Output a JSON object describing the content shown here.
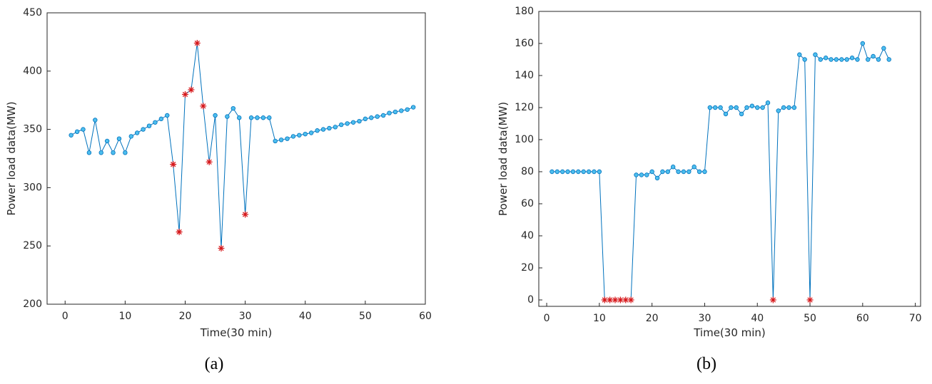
{
  "chart_data": [
    {
      "type": "line",
      "caption": "(a)",
      "xlabel": "Time(30 min)",
      "ylabel": "Power load data(MW)",
      "line_color": "#0072BD",
      "x": [
        1,
        2,
        3,
        4,
        5,
        6,
        7,
        8,
        9,
        10,
        11,
        12,
        13,
        14,
        15,
        16,
        17,
        18,
        19,
        20,
        21,
        22,
        23,
        24,
        25,
        26,
        27,
        28,
        29,
        30,
        31,
        32,
        33,
        34,
        35,
        36,
        37,
        38,
        39,
        40,
        41,
        42,
        43,
        44,
        45,
        46,
        47,
        48,
        49,
        50,
        51,
        52,
        53,
        54,
        55,
        56,
        57,
        58
      ],
      "series": [
        {
          "marker": "o",
          "color": "#4DBEEE",
          "values": [
            345,
            348,
            350,
            330,
            358,
            330,
            340,
            330,
            342,
            330,
            344,
            347,
            350,
            353,
            356,
            359,
            362,
            null,
            null,
            null,
            null,
            null,
            null,
            null,
            362,
            null,
            361,
            368,
            360,
            null,
            360,
            360,
            360,
            360,
            340,
            341,
            342,
            344,
            345,
            346,
            347,
            349,
            350,
            351,
            352,
            354,
            355,
            356,
            357,
            359,
            360,
            361,
            362,
            364,
            365,
            366,
            367,
            369
          ]
        },
        {
          "marker": "*",
          "color": "#D7191C",
          "values": [
            null,
            null,
            null,
            null,
            null,
            null,
            null,
            null,
            null,
            null,
            null,
            null,
            null,
            null,
            null,
            null,
            null,
            320,
            262,
            380,
            384,
            424,
            370,
            322,
            null,
            248,
            null,
            null,
            null,
            277,
            null,
            null,
            null,
            null,
            null,
            null,
            null,
            null,
            null,
            null,
            null,
            null,
            null,
            null,
            null,
            null,
            null,
            null,
            null,
            null,
            null,
            null,
            null,
            null,
            null,
            null,
            null,
            null
          ]
        }
      ],
      "xlim": [
        -3,
        60
      ],
      "xticks": [
        0,
        10,
        20,
        30,
        40,
        50,
        60
      ],
      "ylim": [
        200,
        450
      ],
      "yticks": [
        200,
        250,
        300,
        350,
        400,
        450
      ]
    },
    {
      "type": "line",
      "caption": "(b)",
      "xlabel": "Time(30 min)",
      "ylabel": "Power load data(MW)",
      "line_color": "#0072BD",
      "x": [
        1,
        2,
        3,
        4,
        5,
        6,
        7,
        8,
        9,
        10,
        11,
        12,
        13,
        14,
        15,
        16,
        17,
        18,
        19,
        20,
        21,
        22,
        23,
        24,
        25,
        26,
        27,
        28,
        29,
        30,
        31,
        32,
        33,
        34,
        35,
        36,
        37,
        38,
        39,
        40,
        41,
        42,
        43,
        44,
        45,
        46,
        47,
        48,
        49,
        50,
        51,
        52,
        53,
        54,
        55,
        56,
        57,
        58,
        59,
        60,
        61,
        62,
        63,
        64,
        65
      ],
      "series": [
        {
          "marker": "o",
          "color": "#4DBEEE",
          "values": [
            80,
            80,
            80,
            80,
            80,
            80,
            80,
            80,
            80,
            80,
            null,
            null,
            null,
            null,
            null,
            null,
            78,
            78,
            78,
            80,
            76,
            80,
            80,
            83,
            80,
            80,
            80,
            83,
            80,
            80,
            120,
            120,
            120,
            116,
            120,
            120,
            116,
            120,
            121,
            120,
            120,
            123,
            null,
            118,
            120,
            120,
            120,
            153,
            150,
            null,
            153,
            150,
            151,
            150,
            150,
            150,
            150,
            151,
            150,
            160,
            150,
            152,
            150,
            157,
            150
          ]
        },
        {
          "marker": "*",
          "color": "#D7191C",
          "values": [
            null,
            null,
            null,
            null,
            null,
            null,
            null,
            null,
            null,
            null,
            0,
            0,
            0,
            0,
            0,
            0,
            null,
            null,
            null,
            null,
            null,
            null,
            null,
            null,
            null,
            null,
            null,
            null,
            null,
            null,
            null,
            null,
            null,
            null,
            null,
            null,
            null,
            null,
            null,
            null,
            null,
            null,
            0,
            null,
            null,
            null,
            null,
            null,
            null,
            0,
            null,
            null,
            null,
            null,
            null,
            null,
            null,
            null,
            null,
            null,
            null,
            null,
            null,
            null,
            null
          ]
        }
      ],
      "xlim": [
        -1.5,
        71
      ],
      "xticks": [
        0,
        10,
        20,
        30,
        40,
        50,
        60,
        70
      ],
      "ylim": [
        -4,
        180
      ],
      "yticks": [
        0,
        20,
        40,
        60,
        80,
        100,
        120,
        140,
        160,
        180
      ]
    }
  ]
}
